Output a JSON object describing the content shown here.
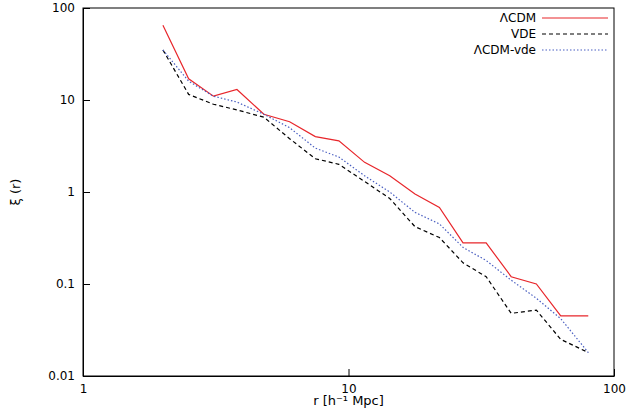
{
  "chart_data": {
    "type": "line",
    "x_label": "r  [h⁻¹ Mpc]",
    "y_label": "ξ (r)",
    "x": [
      2.0,
      2.5,
      3.1,
      3.8,
      4.8,
      6.0,
      7.5,
      9.2,
      11.5,
      14.3,
      17.8,
      22,
      27,
      33,
      41,
      51,
      63,
      80
    ],
    "series": [
      {
        "name": "ΛCDM",
        "color": "#e8262b",
        "line_style": "solid",
        "values": [
          65,
          17,
          11,
          13,
          7,
          5.8,
          4,
          3.6,
          2.1,
          1.5,
          0.95,
          0.68,
          0.28,
          0.28,
          0.12,
          0.1,
          0.045,
          0.045
        ]
      },
      {
        "name": "VDE",
        "color": "#000000",
        "line_style": "dashed",
        "values": [
          35,
          11.5,
          9,
          7.8,
          6.5,
          3.8,
          2.3,
          2.0,
          1.3,
          0.85,
          0.42,
          0.32,
          0.17,
          0.12,
          0.048,
          0.052,
          0.025,
          0.018
        ]
      },
      {
        "name": "ΛCDM-vde",
        "color": "#4a5fc1",
        "line_style": "dotted",
        "values": [
          35,
          16,
          11,
          9.5,
          7,
          5,
          3,
          2.4,
          1.5,
          1.0,
          0.6,
          0.45,
          0.25,
          0.18,
          0.11,
          0.07,
          0.042,
          0.018
        ]
      }
    ],
    "xlim": [
      1,
      100
    ],
    "xticks": [
      1,
      10,
      100
    ],
    "ylim": [
      0.01,
      100
    ],
    "yticks": [
      0.01,
      0.1,
      1,
      10,
      100
    ],
    "log": true,
    "legend": "upper-right"
  }
}
